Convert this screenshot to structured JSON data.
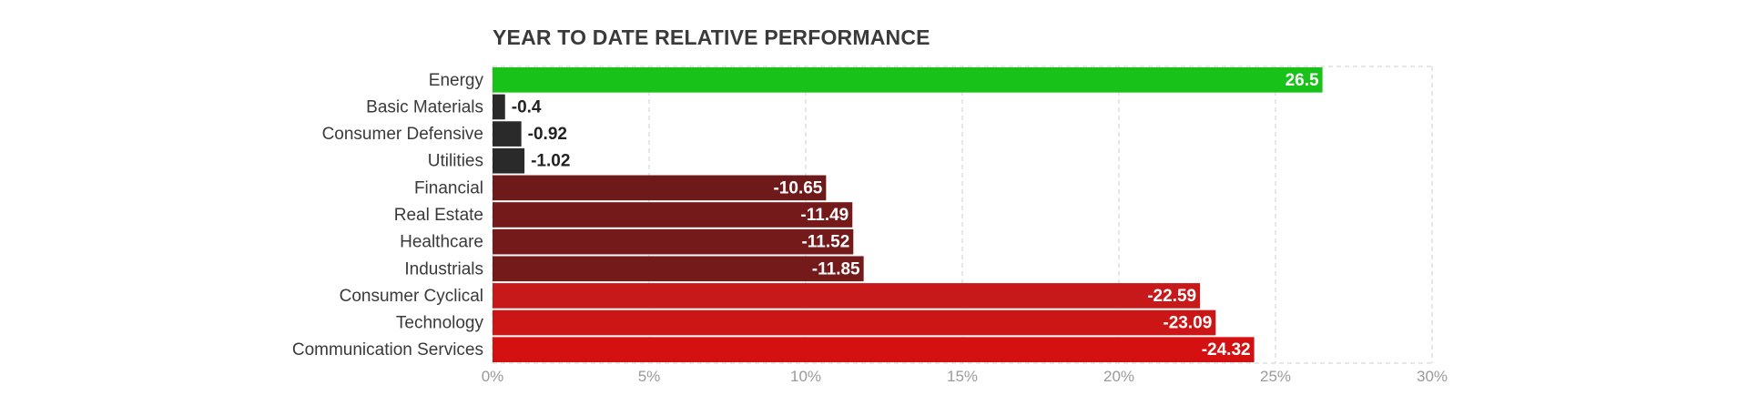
{
  "chart_data": {
    "type": "bar",
    "orientation": "horizontal",
    "title": "YEAR TO DATE RELATIVE PERFORMANCE",
    "categories": [
      "Energy",
      "Basic Materials",
      "Consumer Defensive",
      "Utilities",
      "Financial",
      "Real Estate",
      "Healthcare",
      "Industrials",
      "Consumer Cyclical",
      "Technology",
      "Communication Services"
    ],
    "values": [
      26.5,
      -0.4,
      -0.92,
      -1.02,
      -10.65,
      -11.49,
      -11.52,
      -11.85,
      -22.59,
      -23.09,
      -24.32
    ],
    "value_labels": [
      "26.5",
      "-0.4",
      "-0.92",
      "-1.02",
      "-10.65",
      "-11.49",
      "-11.52",
      "-11.85",
      "-22.59",
      "-23.09",
      "-24.32"
    ],
    "bar_colors": [
      "#19c219",
      "#2a2a2a",
      "#2a2a2a",
      "#2a2a2a",
      "#6e1a1a",
      "#741a1a",
      "#741a1a",
      "#741a1a",
      "#c8191a",
      "#cc1616",
      "#d41010"
    ],
    "xaxis_ticks": [
      "0%",
      "5%",
      "10%",
      "15%",
      "20%",
      "25%",
      "30%"
    ],
    "xlim": [
      0,
      30
    ],
    "bar_length": "absolute value",
    "grid": "vertical dashed",
    "xlabel": "",
    "ylabel": ""
  }
}
